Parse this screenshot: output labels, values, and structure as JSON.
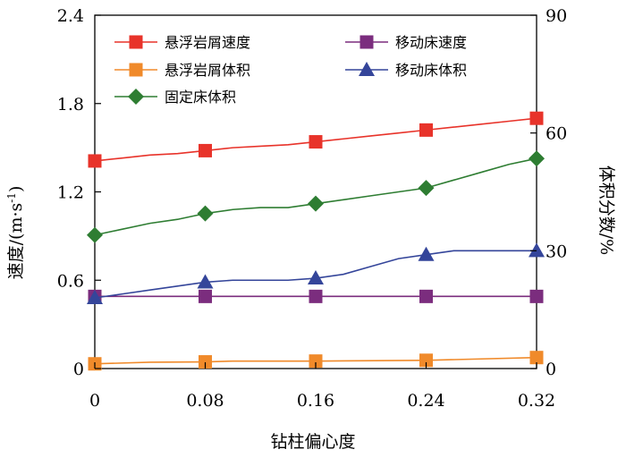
{
  "chart_data": {
    "type": "line",
    "xlabel": "钻柱偏心度",
    "ylabel_left": "速度/(m·s",
    "ylabel_left_exp": "-1",
    "ylabel_left_tail": ")",
    "ylabel_right": "体积分数/%",
    "x_ticks": [
      "0",
      "0.08",
      "0.16",
      "0.24",
      "0.32"
    ],
    "y_left_ticks": [
      "0",
      "0.6",
      "1.2",
      "1.8",
      "2.4"
    ],
    "y_right_ticks": [
      "0",
      "30",
      "60",
      "90"
    ],
    "xlim": [
      0,
      0.32
    ],
    "ylim_left": [
      0,
      2.4
    ],
    "ylim_right": [
      0,
      90
    ],
    "series": [
      {
        "name": "悬浮岩屑速度",
        "axis": "left",
        "color": "#e8332a",
        "marker": "square",
        "x": [
          0,
          0.02,
          0.04,
          0.06,
          0.08,
          0.1,
          0.12,
          0.14,
          0.16,
          0.18,
          0.2,
          0.22,
          0.24,
          0.26,
          0.28,
          0.3,
          0.32
        ],
        "y": [
          1.41,
          1.43,
          1.45,
          1.46,
          1.48,
          1.5,
          1.51,
          1.52,
          1.54,
          1.56,
          1.58,
          1.6,
          1.62,
          1.64,
          1.66,
          1.68,
          1.7
        ],
        "marker_x": [
          0,
          0.08,
          0.16,
          0.24,
          0.32
        ]
      },
      {
        "name": "移动床速度",
        "axis": "left",
        "color": "#7b2d7e",
        "marker": "square",
        "x": [
          0,
          0.32
        ],
        "y": [
          0.49,
          0.49
        ],
        "marker_x": [
          0,
          0.08,
          0.16,
          0.24,
          0.32
        ]
      },
      {
        "name": "悬浮岩屑体积",
        "axis": "right",
        "color": "#f08a2a",
        "marker": "square",
        "x": [
          0,
          0.04,
          0.08,
          0.1,
          0.16,
          0.24,
          0.32
        ],
        "y": [
          1.2,
          1.6,
          1.7,
          1.9,
          1.9,
          2.1,
          2.8
        ],
        "marker_x": [
          0,
          0.08,
          0.16,
          0.24,
          0.32
        ]
      },
      {
        "name": "移动床体积",
        "axis": "right",
        "color": "#34459a",
        "marker": "triangle",
        "x": [
          0,
          0.02,
          0.04,
          0.06,
          0.08,
          0.1,
          0.12,
          0.14,
          0.16,
          0.18,
          0.2,
          0.22,
          0.24,
          0.26,
          0.28,
          0.3,
          0.32
        ],
        "y": [
          18,
          19,
          20,
          21,
          22,
          22.5,
          22.5,
          22.5,
          23,
          24,
          26,
          28,
          29,
          30,
          30,
          30,
          30
        ],
        "marker_x": [
          0,
          0.08,
          0.16,
          0.24,
          0.32
        ]
      },
      {
        "name": "固定床体积",
        "axis": "right",
        "color": "#2e7d32",
        "marker": "diamond",
        "x": [
          0,
          0.02,
          0.04,
          0.06,
          0.08,
          0.1,
          0.12,
          0.14,
          0.16,
          0.18,
          0.2,
          0.22,
          0.24,
          0.26,
          0.28,
          0.3,
          0.32
        ],
        "y": [
          34,
          35.5,
          37,
          38,
          39.5,
          40.5,
          41,
          41,
          42,
          43,
          44,
          45,
          46,
          48,
          50,
          52,
          53.5
        ],
        "marker_x": [
          0,
          0.08,
          0.16,
          0.24,
          0.32
        ]
      }
    ],
    "legend": [
      {
        "series": 0
      },
      {
        "series": 1
      },
      {
        "series": 2
      },
      {
        "series": 3
      },
      {
        "series": 4
      }
    ]
  }
}
